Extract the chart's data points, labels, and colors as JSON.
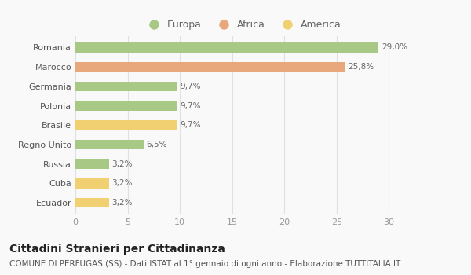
{
  "categories": [
    "Romania",
    "Marocco",
    "Germania",
    "Polonia",
    "Brasile",
    "Regno Unito",
    "Russia",
    "Cuba",
    "Ecuador"
  ],
  "values": [
    29.0,
    25.8,
    9.7,
    9.7,
    9.7,
    6.5,
    3.2,
    3.2,
    3.2
  ],
  "labels": [
    "29,0%",
    "25,8%",
    "9,7%",
    "9,7%",
    "9,7%",
    "6,5%",
    "3,2%",
    "3,2%",
    "3,2%"
  ],
  "colors": [
    "#a8c885",
    "#e8a87c",
    "#a8c885",
    "#a8c885",
    "#f0d070",
    "#a8c885",
    "#a8c885",
    "#f0d070",
    "#f0d070"
  ],
  "legend_labels": [
    "Europa",
    "Africa",
    "America"
  ],
  "legend_colors": [
    "#a8c885",
    "#e8a87c",
    "#f0d070"
  ],
  "title": "Cittadini Stranieri per Cittadinanza",
  "subtitle": "COMUNE DI PERFUGAS (SS) - Dati ISTAT al 1° gennaio di ogni anno - Elaborazione TUTTITALIA.IT",
  "xlim": [
    0,
    32
  ],
  "xticks": [
    0,
    5,
    10,
    15,
    20,
    25,
    30
  ],
  "background_color": "#f9f9f9",
  "grid_color": "#e0e0e0",
  "bar_height": 0.5,
  "title_fontsize": 10,
  "subtitle_fontsize": 7.5,
  "label_fontsize": 7.5,
  "tick_fontsize": 8,
  "legend_fontsize": 9
}
